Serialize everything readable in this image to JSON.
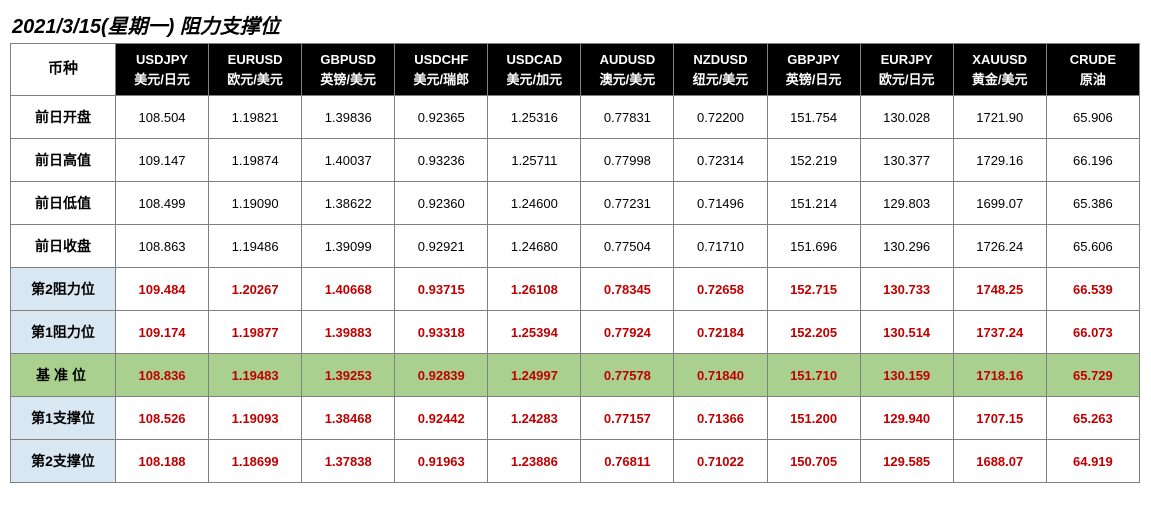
{
  "title": "2021/3/15(星期一) 阻力支撑位",
  "rowhead_header": "币种",
  "columns": [
    {
      "symbol": "USDJPY",
      "label": "美元/日元"
    },
    {
      "symbol": "EURUSD",
      "label": "欧元/美元"
    },
    {
      "symbol": "GBPUSD",
      "label": "英镑/美元"
    },
    {
      "symbol": "USDCHF",
      "label": "美元/瑞郎"
    },
    {
      "symbol": "USDCAD",
      "label": "美元/加元"
    },
    {
      "symbol": "AUDUSD",
      "label": "澳元/美元"
    },
    {
      "symbol": "NZDUSD",
      "label": "纽元/美元"
    },
    {
      "symbol": "GBPJPY",
      "label": "英镑/日元"
    },
    {
      "symbol": "EURJPY",
      "label": "欧元/日元"
    },
    {
      "symbol": "XAUUSD",
      "label": "黄金/美元"
    },
    {
      "symbol": "CRUDE",
      "label": "原油"
    }
  ],
  "rows": [
    {
      "name": "前日开盘",
      "type": "md",
      "values": [
        "108.504",
        "1.19821",
        "1.39836",
        "0.92365",
        "1.25316",
        "0.77831",
        "0.72200",
        "151.754",
        "130.028",
        "1721.90",
        "65.906"
      ]
    },
    {
      "name": "前日高值",
      "type": "md",
      "values": [
        "109.147",
        "1.19874",
        "1.40037",
        "0.93236",
        "1.25711",
        "0.77998",
        "0.72314",
        "152.219",
        "130.377",
        "1729.16",
        "66.196"
      ]
    },
    {
      "name": "前日低值",
      "type": "md",
      "values": [
        "108.499",
        "1.19090",
        "1.38622",
        "0.92360",
        "1.24600",
        "0.77231",
        "0.71496",
        "151.214",
        "129.803",
        "1699.07",
        "65.386"
      ]
    },
    {
      "name": "前日收盘",
      "type": "md",
      "values": [
        "108.863",
        "1.19486",
        "1.39099",
        "0.92921",
        "1.24680",
        "0.77504",
        "0.71710",
        "151.696",
        "130.296",
        "1726.24",
        "65.606"
      ]
    },
    {
      "name": "第2阻力位",
      "type": "pivot",
      "hl": "blue",
      "values": [
        "109.484",
        "1.20267",
        "1.40668",
        "0.93715",
        "1.26108",
        "0.78345",
        "0.72658",
        "152.715",
        "130.733",
        "1748.25",
        "66.539"
      ]
    },
    {
      "name": "第1阻力位",
      "type": "pivot",
      "hl": "blue",
      "values": [
        "109.174",
        "1.19877",
        "1.39883",
        "0.93318",
        "1.25394",
        "0.77924",
        "0.72184",
        "152.205",
        "130.514",
        "1737.24",
        "66.073"
      ]
    },
    {
      "name": "基准位",
      "type": "pivot",
      "hl": "green",
      "values": [
        "108.836",
        "1.19483",
        "1.39253",
        "0.92839",
        "1.24997",
        "0.77578",
        "0.71840",
        "151.710",
        "130.159",
        "1718.16",
        "65.729"
      ]
    },
    {
      "name": "第1支撑位",
      "type": "pivot",
      "hl": "blue",
      "values": [
        "108.526",
        "1.19093",
        "1.38468",
        "0.92442",
        "1.24283",
        "0.77157",
        "0.71366",
        "151.200",
        "129.940",
        "1707.15",
        "65.263"
      ]
    },
    {
      "name": "第2支撑位",
      "type": "pivot",
      "hl": "blue",
      "values": [
        "108.188",
        "1.18699",
        "1.37838",
        "0.91963",
        "1.23886",
        "0.76811",
        "0.71022",
        "150.705",
        "129.585",
        "1688.07",
        "64.919"
      ]
    }
  ],
  "colors": {
    "header_bg": "#000000",
    "header_fg": "#ffffff",
    "pivot_fg": "#c00000",
    "hl_blue": "#d9e7f2",
    "hl_green": "#a9d08e",
    "border": "#808080"
  }
}
